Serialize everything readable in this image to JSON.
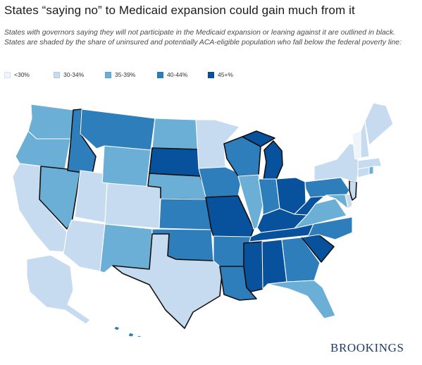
{
  "title": "States “saying no” to Medicaid expansion could gain much from it",
  "subtitle": "States with governors saying they will not participate in the Medicaid expansion or leaning against it are outlined in black. States are shaded by the share of uninsured and potentially ACA-eligible population who fall below the federal poverty line:",
  "legend": [
    {
      "key": "lt30",
      "label": "<30%",
      "color": "#eef4fb"
    },
    {
      "key": "30_34",
      "label": "30-34%",
      "color": "#c6dbef"
    },
    {
      "key": "35_39",
      "label": "35-39%",
      "color": "#6baed6"
    },
    {
      "key": "40_44",
      "label": "40-44%",
      "color": "#2e7ebc"
    },
    {
      "key": "45plus",
      "label": "45+%",
      "color": "#08519c"
    }
  ],
  "brand": "BROOKINGS",
  "states": [
    {
      "code": "WA",
      "bin": "35_39",
      "says_no": false
    },
    {
      "code": "OR",
      "bin": "35_39",
      "says_no": false
    },
    {
      "code": "CA",
      "bin": "30_34",
      "says_no": false
    },
    {
      "code": "NV",
      "bin": "35_39",
      "says_no": true
    },
    {
      "code": "ID",
      "bin": "40_44",
      "says_no": true
    },
    {
      "code": "MT",
      "bin": "40_44",
      "says_no": false
    },
    {
      "code": "WY",
      "bin": "35_39",
      "says_no": false
    },
    {
      "code": "UT",
      "bin": "30_34",
      "says_no": false
    },
    {
      "code": "AZ",
      "bin": "30_34",
      "says_no": false
    },
    {
      "code": "CO",
      "bin": "30_34",
      "says_no": false
    },
    {
      "code": "NM",
      "bin": "35_39",
      "says_no": false
    },
    {
      "code": "ND",
      "bin": "35_39",
      "says_no": false
    },
    {
      "code": "SD",
      "bin": "45plus",
      "says_no": true
    },
    {
      "code": "NE",
      "bin": "35_39",
      "says_no": true
    },
    {
      "code": "KS",
      "bin": "40_44",
      "says_no": false
    },
    {
      "code": "OK",
      "bin": "40_44",
      "says_no": false
    },
    {
      "code": "TX",
      "bin": "30_34",
      "says_no": true
    },
    {
      "code": "MN",
      "bin": "30_34",
      "says_no": false
    },
    {
      "code": "IA",
      "bin": "40_44",
      "says_no": false
    },
    {
      "code": "MO",
      "bin": "45plus",
      "says_no": true
    },
    {
      "code": "AR",
      "bin": "40_44",
      "says_no": false
    },
    {
      "code": "LA",
      "bin": "40_44",
      "says_no": true
    },
    {
      "code": "WI",
      "bin": "40_44",
      "says_no": true
    },
    {
      "code": "IL",
      "bin": "35_39",
      "says_no": false
    },
    {
      "code": "MI",
      "bin": "45plus",
      "says_no": true
    },
    {
      "code": "IN",
      "bin": "40_44",
      "says_no": false
    },
    {
      "code": "OH",
      "bin": "45plus",
      "says_no": false
    },
    {
      "code": "KY",
      "bin": "45plus",
      "says_no": false
    },
    {
      "code": "TN",
      "bin": "45plus",
      "says_no": false
    },
    {
      "code": "MS",
      "bin": "45plus",
      "says_no": true
    },
    {
      "code": "AL",
      "bin": "45plus",
      "says_no": false
    },
    {
      "code": "GA",
      "bin": "40_44",
      "says_no": false
    },
    {
      "code": "FL",
      "bin": "35_39",
      "says_no": false
    },
    {
      "code": "SC",
      "bin": "45plus",
      "says_no": true
    },
    {
      "code": "NC",
      "bin": "40_44",
      "says_no": false
    },
    {
      "code": "VA",
      "bin": "35_39",
      "says_no": false
    },
    {
      "code": "WV",
      "bin": "45plus",
      "says_no": false
    },
    {
      "code": "PA",
      "bin": "40_44",
      "says_no": false
    },
    {
      "code": "NY",
      "bin": "30_34",
      "says_no": false
    },
    {
      "code": "NJ",
      "bin": "30_34",
      "says_no": true
    },
    {
      "code": "DE",
      "bin": "30_34",
      "says_no": false
    },
    {
      "code": "MD",
      "bin": "35_39",
      "says_no": false
    },
    {
      "code": "CT",
      "bin": "30_34",
      "says_no": false
    },
    {
      "code": "RI",
      "bin": "35_39",
      "says_no": false
    },
    {
      "code": "MA",
      "bin": "30_34",
      "says_no": false
    },
    {
      "code": "VT",
      "bin": "lt30",
      "says_no": false
    },
    {
      "code": "NH",
      "bin": "30_34",
      "says_no": false
    },
    {
      "code": "ME",
      "bin": "30_34",
      "says_no": false
    },
    {
      "code": "AK",
      "bin": "30_34",
      "says_no": false
    },
    {
      "code": "HI",
      "bin": "40_44",
      "says_no": false
    }
  ]
}
